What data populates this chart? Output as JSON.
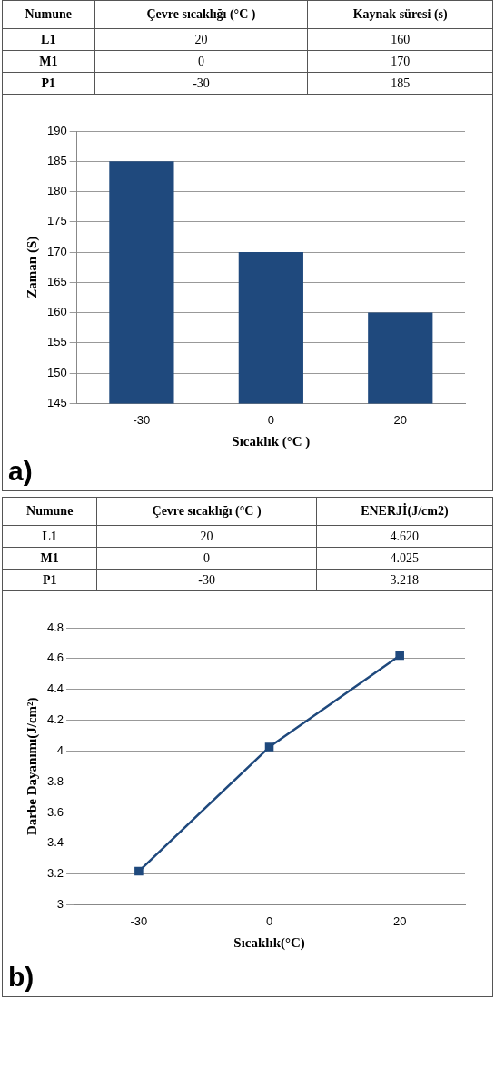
{
  "chart_data": [
    {
      "type": "bar",
      "categories": [
        "-30",
        "0",
        "20"
      ],
      "values": [
        185,
        170,
        160
      ],
      "color": "#1f497d",
      "ylim": [
        145,
        190
      ],
      "yticks": [
        145,
        150,
        155,
        160,
        165,
        170,
        175,
        180,
        185,
        190
      ],
      "grid": "y",
      "legend": false,
      "xlabel": "Sıcaklık (°C )",
      "ylabel": "Zaman (S)",
      "annotations": [
        "Numune",
        "Çevre sıcaklığı (°C )",
        "Kaynak süresi (s)",
        "L1",
        "20",
        "160",
        "M1",
        "0",
        "170",
        "P1",
        "-30",
        "185",
        "a)"
      ]
    },
    {
      "type": "line",
      "categories": [
        "-30",
        "0",
        "20"
      ],
      "series": [
        {
          "color": "#1f497d",
          "values": [
            3.218,
            4.025,
            4.62
          ]
        }
      ],
      "ylim": [
        3,
        4.8
      ],
      "yticks": [
        3,
        3.2,
        3.4,
        3.6,
        3.8,
        4,
        4.2,
        4.4,
        4.6,
        4.8
      ],
      "grid": "y",
      "legend": false,
      "marker": "square",
      "line_style": "solid",
      "xlabel": "Sıcaklık(°C)",
      "ylabel": "Darbe Dayanımı(J/cm²)",
      "annotations": [
        "Numune",
        "Çevre sıcaklığı (°C )",
        "ENERJİ(J/cm2)",
        "L1",
        "20",
        "4.620",
        "M1",
        "0",
        "4.025",
        "P1",
        "-30",
        "3.218",
        "b)"
      ]
    }
  ]
}
